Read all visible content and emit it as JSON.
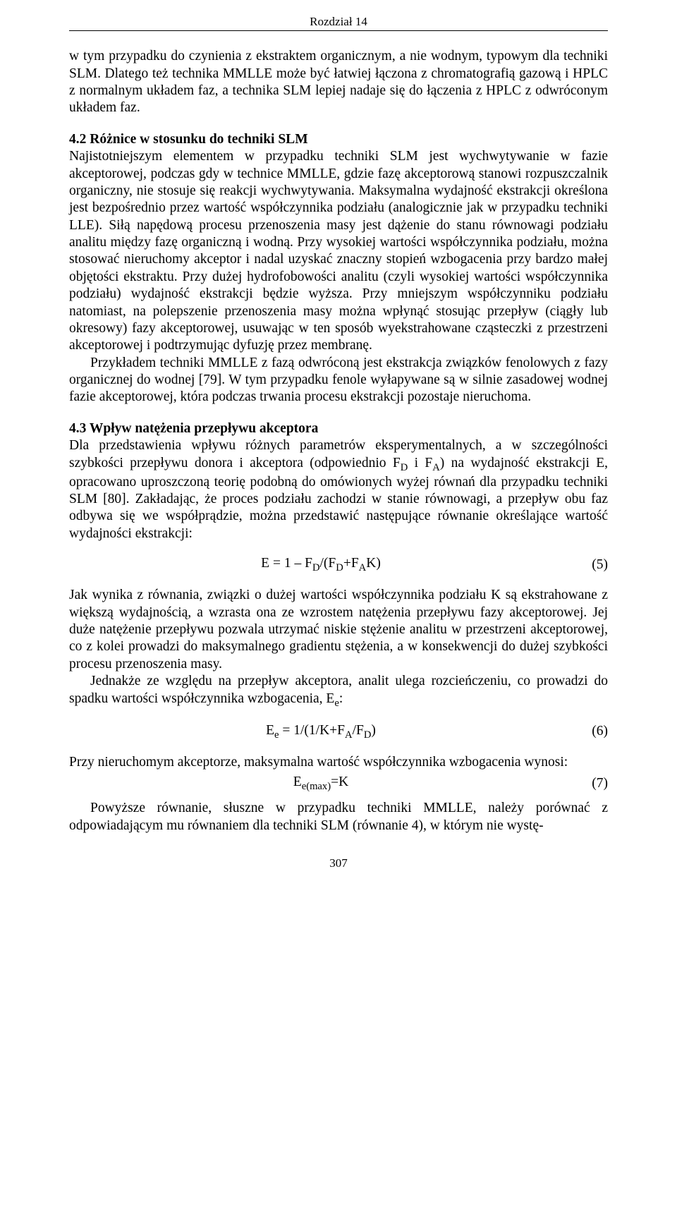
{
  "chapter_header": "Rozdział 14",
  "intro_para": "w tym przypadku do czynienia z ekstraktem organicznym, a nie wodnym, typowym dla techniki SLM. Dlatego też technika MMLLE może być łatwiej łączona z chromatografią gazową i HPLC z normalnym układem faz, a technika SLM lepiej nadaje się do łączenia z HPLC z odwróconym układem faz.",
  "section_42": {
    "heading": "4.2  Różnice w stosunku do techniki SLM",
    "para1": "Najistotniejszym elementem w przypadku techniki SLM jest wychwytywanie w fazie akceptorowej, podczas gdy w technice MMLLE, gdzie fazę akceptorową stanowi rozpuszczalnik organiczny, nie stosuje się reakcji wychwytywania. Maksymalna wydajność ekstrakcji określona jest bezpośrednio przez wartość współczynnika podziału (analogicznie jak w przypadku techniki LLE). Siłą napędową procesu przenoszenia masy jest dążenie do stanu równowagi podziału analitu między fazę organiczną i wodną. Przy wysokiej wartości współczynnika podziału, można stosować nieruchomy akceptor i nadal uzyskać znaczny stopień wzbogacenia przy bardzo małej objętości ekstraktu. Przy dużej hydrofobowości analitu (czyli wysokiej wartości współczynnika podziału) wydajność ekstrakcji będzie wyższa. Przy mniejszym współczynniku podziału natomiast, na polepszenie przenoszenia masy można wpłynąć stosując przepływ (ciągły lub okresowy) fazy akceptorowej, usuwając w ten sposób wyekstrahowane cząsteczki z przestrzeni akceptorowej i podtrzymując dyfuzję przez membranę.",
    "para2": "Przykładem techniki MMLLE z fazą odwróconą jest ekstrakcja związków fenolowych z fazy organicznej do wodnej [79]. W tym przypadku fenole wyłapywane są w silnie zasadowej wodnej fazie akceptorowej, która podczas trwania procesu ekstrakcji pozostaje nieruchoma."
  },
  "section_43": {
    "heading": "4.3  Wpływ natężenia przepływu akceptora",
    "para1_html": "Dla przedstawienia wpływu różnych parametrów eksperymentalnych, a w szczególności szybkości przepływu donora i akceptora (odpowiednio F<sub>D</sub> i F<sub>A</sub>) na wydajność ekstrakcji E, opracowano uproszczoną teorię podobną do omówionych wyżej równań dla przypadku techniki SLM [80]. Zakładając, że proces podziału zachodzi w stanie równowagi, a przepływ obu faz odbywa się we współprądzie, można przedstawić następujące równanie określające wartość wydajności ekstrakcji:",
    "eq5_html": "E = 1 – F<sub>D</sub>/(F<sub>D</sub>+F<sub>A</sub>K)",
    "eq5_num": "(5)",
    "para2": "Jak wynika z równania, związki o dużej wartości współczynnika podziału K są ekstrahowane z większą wydajnością, a wzrasta ona ze wzrostem natężenia przepływu fazy akceptorowej. Jej duże natężenie przepływu pozwala utrzymać niskie stężenie analitu w przestrzeni akceptorowej, co z kolei prowadzi do maksymalnego gradientu stężenia, a w konsekwencji do dużej szybkości procesu przenoszenia masy.",
    "para3_html": "Jednakże ze względu na przepływ akceptora, analit ulega rozcieńczeniu, co prowadzi do spadku wartości współczynnika wzbogacenia, E<sub>e</sub>:",
    "eq6_html": "E<sub>e</sub> = 1/(1/K+F<sub>A</sub>/F<sub>D</sub>)",
    "eq6_num": "(6)",
    "para4": "Przy nieruchomym akceptorze, maksymalna wartość współczynnika wzbogacenia wynosi:",
    "eq7_html": "E<sub>e(max)</sub>=K",
    "eq7_num": "(7)",
    "para5": "Powyższe równanie, słuszne w przypadku techniki MMLLE, należy porównać z odpowiadającym mu równaniem dla techniki SLM (równanie 4), w którym nie wystę-"
  },
  "page_number": "307"
}
